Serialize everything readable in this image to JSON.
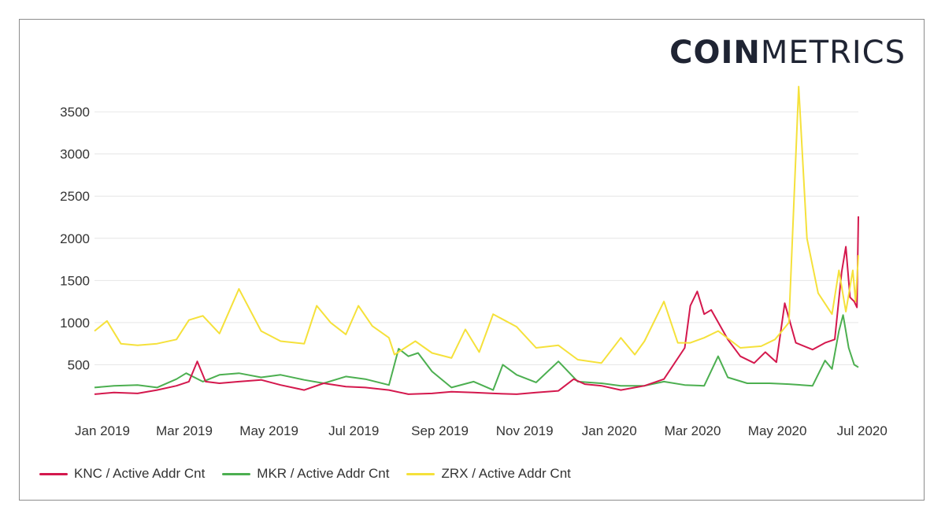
{
  "logo": {
    "bold": "COIN",
    "light": "METRICS"
  },
  "chart_data": {
    "type": "line",
    "title": "",
    "xlabel": "",
    "ylabel": "",
    "x_ticks": [
      "Jan 2019",
      "Mar 2019",
      "May 2019",
      "Jul 2019",
      "Sep 2019",
      "Nov 2019",
      "Jan 2020",
      "Mar 2020",
      "May 2020",
      "Jul 2020"
    ],
    "y_ticks": [
      "500",
      "1000",
      "1500",
      "2000",
      "2500",
      "3000",
      "3500"
    ],
    "ylim": [
      0,
      3800
    ],
    "xlim": [
      "2019-01-01",
      "2020-07-04"
    ],
    "grid": "horizontal",
    "legend_position": "bottom",
    "series": [
      {
        "name": "KNC / Active Addr Cnt",
        "color": "#d4184d",
        "points": [
          [
            "2019-01-01",
            150
          ],
          [
            "2019-01-15",
            170
          ],
          [
            "2019-02-01",
            160
          ],
          [
            "2019-02-15",
            200
          ],
          [
            "2019-03-01",
            250
          ],
          [
            "2019-03-10",
            300
          ],
          [
            "2019-03-16",
            540
          ],
          [
            "2019-03-22",
            300
          ],
          [
            "2019-04-01",
            280
          ],
          [
            "2019-04-15",
            300
          ],
          [
            "2019-05-01",
            320
          ],
          [
            "2019-05-15",
            260
          ],
          [
            "2019-06-01",
            200
          ],
          [
            "2019-06-15",
            280
          ],
          [
            "2019-07-01",
            240
          ],
          [
            "2019-07-15",
            230
          ],
          [
            "2019-08-01",
            200
          ],
          [
            "2019-08-15",
            150
          ],
          [
            "2019-09-01",
            160
          ],
          [
            "2019-09-15",
            180
          ],
          [
            "2019-10-01",
            170
          ],
          [
            "2019-10-15",
            160
          ],
          [
            "2019-11-01",
            150
          ],
          [
            "2019-11-15",
            170
          ],
          [
            "2019-12-01",
            190
          ],
          [
            "2019-12-12",
            330
          ],
          [
            "2019-12-20",
            270
          ],
          [
            "2020-01-01",
            250
          ],
          [
            "2020-01-15",
            200
          ],
          [
            "2020-02-01",
            250
          ],
          [
            "2020-02-15",
            330
          ],
          [
            "2020-03-01",
            700
          ],
          [
            "2020-03-05",
            1200
          ],
          [
            "2020-03-10",
            1370
          ],
          [
            "2020-03-15",
            1100
          ],
          [
            "2020-03-20",
            1150
          ],
          [
            "2020-04-01",
            800
          ],
          [
            "2020-04-10",
            600
          ],
          [
            "2020-04-20",
            520
          ],
          [
            "2020-04-28",
            650
          ],
          [
            "2020-05-06",
            530
          ],
          [
            "2020-05-12",
            1230
          ],
          [
            "2020-05-20",
            760
          ],
          [
            "2020-06-01",
            680
          ],
          [
            "2020-06-10",
            760
          ],
          [
            "2020-06-17",
            800
          ],
          [
            "2020-06-22",
            1600
          ],
          [
            "2020-06-25",
            1900
          ],
          [
            "2020-06-28",
            1300
          ],
          [
            "2020-07-01",
            1250
          ],
          [
            "2020-07-03",
            1180
          ],
          [
            "2020-07-04",
            2260
          ]
        ]
      },
      {
        "name": "MKR / Active Addr Cnt",
        "color": "#4caf50",
        "points": [
          [
            "2019-01-01",
            230
          ],
          [
            "2019-01-15",
            250
          ],
          [
            "2019-02-01",
            260
          ],
          [
            "2019-02-15",
            230
          ],
          [
            "2019-03-01",
            330
          ],
          [
            "2019-03-08",
            400
          ],
          [
            "2019-03-20",
            300
          ],
          [
            "2019-04-01",
            380
          ],
          [
            "2019-04-15",
            400
          ],
          [
            "2019-05-01",
            350
          ],
          [
            "2019-05-15",
            380
          ],
          [
            "2019-06-01",
            320
          ],
          [
            "2019-06-15",
            280
          ],
          [
            "2019-07-01",
            360
          ],
          [
            "2019-07-15",
            330
          ],
          [
            "2019-08-01",
            260
          ],
          [
            "2019-08-08",
            690
          ],
          [
            "2019-08-15",
            600
          ],
          [
            "2019-08-22",
            640
          ],
          [
            "2019-09-01",
            420
          ],
          [
            "2019-09-15",
            230
          ],
          [
            "2019-10-01",
            300
          ],
          [
            "2019-10-15",
            200
          ],
          [
            "2019-10-22",
            500
          ],
          [
            "2019-11-01",
            380
          ],
          [
            "2019-11-15",
            290
          ],
          [
            "2019-12-01",
            540
          ],
          [
            "2019-12-15",
            300
          ],
          [
            "2020-01-01",
            280
          ],
          [
            "2020-01-15",
            250
          ],
          [
            "2020-02-01",
            250
          ],
          [
            "2020-02-15",
            300
          ],
          [
            "2020-03-01",
            260
          ],
          [
            "2020-03-15",
            250
          ],
          [
            "2020-03-25",
            600
          ],
          [
            "2020-04-01",
            350
          ],
          [
            "2020-04-15",
            280
          ],
          [
            "2020-05-01",
            280
          ],
          [
            "2020-05-15",
            270
          ],
          [
            "2020-06-01",
            250
          ],
          [
            "2020-06-10",
            550
          ],
          [
            "2020-06-15",
            450
          ],
          [
            "2020-06-20",
            900
          ],
          [
            "2020-06-23",
            1090
          ],
          [
            "2020-06-27",
            700
          ],
          [
            "2020-07-01",
            500
          ],
          [
            "2020-07-04",
            470
          ]
        ]
      },
      {
        "name": "ZRX / Active Addr Cnt",
        "color": "#f5e13b",
        "points": [
          [
            "2019-01-01",
            900
          ],
          [
            "2019-01-10",
            1020
          ],
          [
            "2019-01-20",
            750
          ],
          [
            "2019-02-01",
            730
          ],
          [
            "2019-02-15",
            750
          ],
          [
            "2019-03-01",
            800
          ],
          [
            "2019-03-10",
            1030
          ],
          [
            "2019-03-20",
            1080
          ],
          [
            "2019-04-01",
            870
          ],
          [
            "2019-04-15",
            1400
          ],
          [
            "2019-05-01",
            900
          ],
          [
            "2019-05-15",
            780
          ],
          [
            "2019-06-01",
            750
          ],
          [
            "2019-06-10",
            1200
          ],
          [
            "2019-06-20",
            1000
          ],
          [
            "2019-07-01",
            860
          ],
          [
            "2019-07-10",
            1200
          ],
          [
            "2019-07-20",
            960
          ],
          [
            "2019-08-01",
            820
          ],
          [
            "2019-08-05",
            620
          ],
          [
            "2019-08-20",
            780
          ],
          [
            "2019-09-01",
            640
          ],
          [
            "2019-09-15",
            580
          ],
          [
            "2019-09-25",
            920
          ],
          [
            "2019-10-05",
            650
          ],
          [
            "2019-10-15",
            1100
          ],
          [
            "2019-11-01",
            950
          ],
          [
            "2019-11-15",
            700
          ],
          [
            "2019-12-01",
            730
          ],
          [
            "2019-12-15",
            560
          ],
          [
            "2020-01-01",
            520
          ],
          [
            "2020-01-15",
            820
          ],
          [
            "2020-01-25",
            620
          ],
          [
            "2020-02-01",
            780
          ],
          [
            "2020-02-15",
            1250
          ],
          [
            "2020-02-25",
            760
          ],
          [
            "2020-03-05",
            760
          ],
          [
            "2020-03-15",
            820
          ],
          [
            "2020-03-25",
            900
          ],
          [
            "2020-04-10",
            700
          ],
          [
            "2020-04-25",
            720
          ],
          [
            "2020-05-05",
            800
          ],
          [
            "2020-05-15",
            1000
          ],
          [
            "2020-05-22",
            3800
          ],
          [
            "2020-05-28",
            2000
          ],
          [
            "2020-06-05",
            1350
          ],
          [
            "2020-06-15",
            1100
          ],
          [
            "2020-06-20",
            1620
          ],
          [
            "2020-06-25",
            1130
          ],
          [
            "2020-06-30",
            1620
          ],
          [
            "2020-07-02",
            1250
          ],
          [
            "2020-07-04",
            1800
          ]
        ]
      }
    ]
  }
}
